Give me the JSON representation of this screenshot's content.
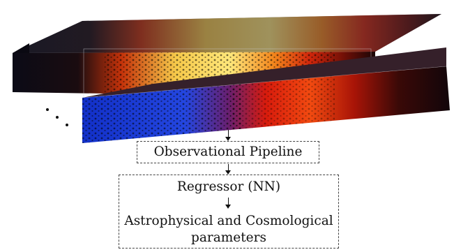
{
  "diagram": {
    "pipeline_label": "Observational Pipeline",
    "regressor_label": "Regressor (NN)",
    "output_label_line1": "Astrophysical and Cosmological",
    "output_label_line2": "parameters",
    "ellipsis": "..."
  },
  "colors": {
    "cold": "#1f3fd6",
    "mid": "#e01a0a",
    "hot": "#ffe36a",
    "dark": "#0b0b16"
  }
}
